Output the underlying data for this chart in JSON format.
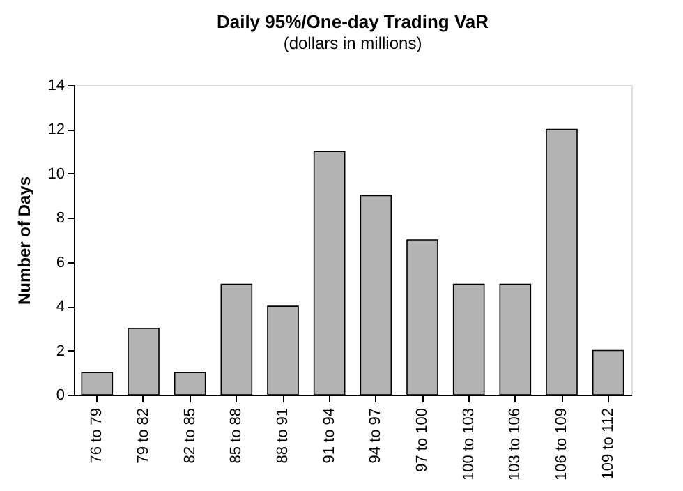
{
  "chart_data": {
    "type": "bar",
    "title": "Daily 95%/One-day Trading VaR",
    "subtitle": "(dollars in millions)",
    "ylabel": "Number of Days",
    "categories": [
      "76 to 79",
      "79 to 82",
      "82 to 85",
      "85 to 88",
      "88 to 91",
      "91 to 94",
      "94 to 97",
      "97 to 100",
      "100 to 103",
      "103 to 106",
      "106 to 109",
      "109 to 112"
    ],
    "values": [
      1,
      3,
      1,
      5,
      4,
      11,
      9,
      7,
      5,
      5,
      12,
      2
    ],
    "color": "#b3b3b3",
    "ylim": [
      0,
      14
    ],
    "yticks": [
      0,
      2,
      4,
      6,
      8,
      10,
      12,
      14
    ],
    "grid": false
  }
}
